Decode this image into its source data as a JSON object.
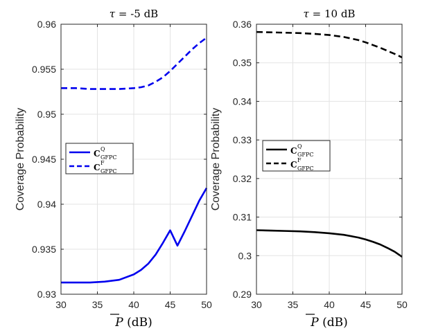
{
  "chart_data": [
    {
      "type": "line",
      "title": "τ = -5 dB",
      "title_sym": "τ",
      "title_rest": " = -5 dB",
      "xlabel": "P̄ (dB)",
      "xlabel_sym": "P",
      "xlabel_rest": " (dB)",
      "ylabel": "Coverage Probability",
      "xlim": [
        30,
        50
      ],
      "ylim": [
        0.93,
        0.96
      ],
      "xticks": [
        "30",
        "35",
        "40",
        "45",
        "50"
      ],
      "yticks": [
        "0.93",
        "0.935",
        "0.94",
        "0.945",
        "0.95",
        "0.955",
        "0.96"
      ],
      "grid": true,
      "legend_position": "left",
      "series": [
        {
          "name": "C^Q_GFPC",
          "name_main": "C",
          "name_sup": "Q",
          "name_sub": "GFPC",
          "color": "#0000ee",
          "style": "solid",
          "x": [
            30,
            32,
            34,
            36,
            38,
            40,
            41,
            42,
            43,
            44,
            45,
            46,
            47,
            48,
            49,
            50
          ],
          "y": [
            0.9313,
            0.9313,
            0.9313,
            0.9314,
            0.9316,
            0.9322,
            0.9327,
            0.9334,
            0.9344,
            0.9357,
            0.9371,
            0.9354,
            0.937,
            0.9387,
            0.9404,
            0.9418
          ]
        },
        {
          "name": "C^F_GFPC",
          "name_main": "C",
          "name_sup": "F",
          "name_sub": "GFPC",
          "color": "#0000ee",
          "style": "dashed",
          "x": [
            30,
            32,
            34,
            36,
            38,
            40,
            41,
            42,
            43,
            44,
            45,
            46,
            47,
            48,
            49,
            50
          ],
          "y": [
            0.9529,
            0.9529,
            0.9528,
            0.9528,
            0.9528,
            0.9529,
            0.953,
            0.9532,
            0.9536,
            0.9541,
            0.9548,
            0.9556,
            0.9564,
            0.9572,
            0.9579,
            0.9585
          ]
        }
      ]
    },
    {
      "type": "line",
      "title": "τ = 10 dB",
      "title_sym": "τ",
      "title_rest": " = 10 dB",
      "xlabel": "P̄ (dB)",
      "xlabel_sym": "P",
      "xlabel_rest": " (dB)",
      "ylabel": "Coverage Probability",
      "xlim": [
        30,
        50
      ],
      "ylim": [
        0.29,
        0.36
      ],
      "xticks": [
        "30",
        "35",
        "40",
        "45",
        "50"
      ],
      "yticks": [
        "0.29",
        "0.3",
        "0.31",
        "0.32",
        "0.33",
        "0.34",
        "0.35",
        "0.36"
      ],
      "grid": true,
      "legend_position": "left",
      "series": [
        {
          "name": "C^Q_GFPC",
          "name_main": "C",
          "name_sup": "Q",
          "name_sub": "GFPC",
          "color": "#000000",
          "style": "solid",
          "x": [
            30,
            32,
            34,
            36,
            38,
            40,
            42,
            44,
            45,
            46,
            47,
            48,
            49,
            50
          ],
          "y": [
            0.3066,
            0.3065,
            0.3064,
            0.3063,
            0.3061,
            0.3058,
            0.3054,
            0.3047,
            0.3042,
            0.3036,
            0.3029,
            0.302,
            0.301,
            0.2997
          ]
        },
        {
          "name": "C^F_GFPC",
          "name_main": "C",
          "name_sup": "F",
          "name_sub": "GFPC",
          "color": "#000000",
          "style": "dashed",
          "x": [
            30,
            32,
            34,
            36,
            38,
            40,
            42,
            44,
            45,
            46,
            47,
            48,
            49,
            50
          ],
          "y": [
            0.358,
            0.3579,
            0.3578,
            0.3577,
            0.3575,
            0.3572,
            0.3567,
            0.3559,
            0.3553,
            0.3546,
            0.3539,
            0.3531,
            0.3523,
            0.3514
          ]
        }
      ]
    }
  ]
}
